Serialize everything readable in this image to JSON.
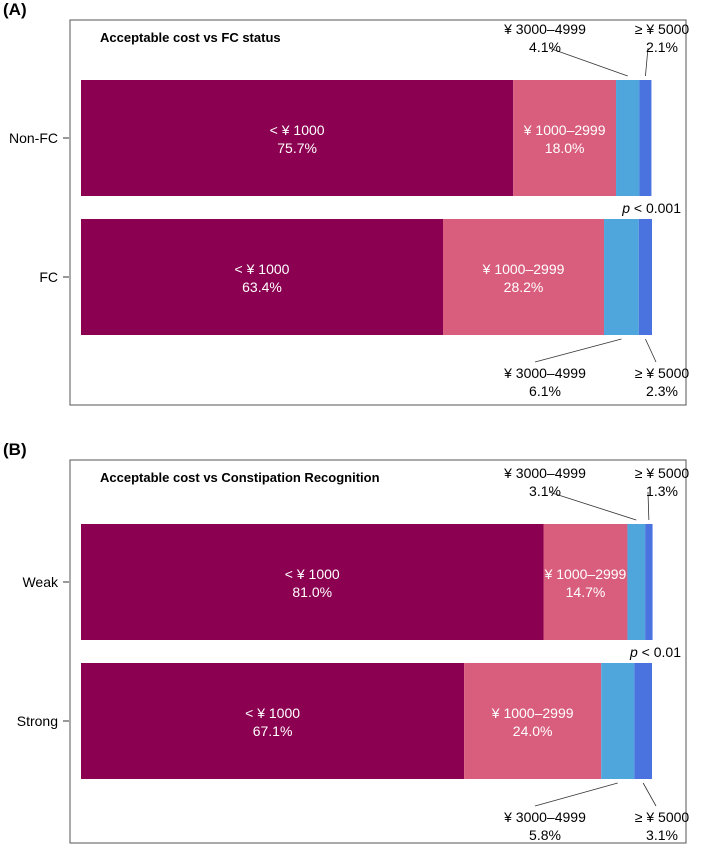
{
  "chart_data": [
    {
      "type": "bar",
      "orientation": "horizontal-stacked-100",
      "panel_label": "(A)",
      "title": "Acceptable cost vs FC status",
      "categories": [
        "Non-FC",
        "FC"
      ],
      "segments": [
        "< ¥ 1000",
        "¥ 1000–2999",
        "¥ 3000–4999",
        "≥ ¥ 5000"
      ],
      "series": [
        {
          "name": "< ¥ 1000",
          "values": [
            75.7,
            63.4
          ]
        },
        {
          "name": "¥ 1000–2999",
          "values": [
            18.0,
            28.2
          ]
        },
        {
          "name": "¥ 3000–4999",
          "values": [
            4.1,
            6.1
          ]
        },
        {
          "name": "≥ ¥ 5000",
          "values": [
            2.1,
            2.3
          ]
        }
      ],
      "p_value": {
        "prefix": "p",
        "text": " < 0.001"
      },
      "xlim": [
        0,
        100
      ]
    },
    {
      "type": "bar",
      "orientation": "horizontal-stacked-100",
      "panel_label": "(B)",
      "title": "Acceptable cost vs Constipation Recognition",
      "categories": [
        "Weak",
        "Strong"
      ],
      "segments": [
        "< ¥ 1000",
        "¥ 1000–2999",
        "¥ 3000–4999",
        "≥ ¥ 5000"
      ],
      "series": [
        {
          "name": "< ¥ 1000",
          "values": [
            81.0,
            67.1
          ]
        },
        {
          "name": "¥ 1000–2999",
          "values": [
            14.7,
            24.0
          ]
        },
        {
          "name": "¥ 3000–4999",
          "values": [
            3.1,
            5.8
          ]
        },
        {
          "name": "≥ ¥ 5000",
          "values": [
            1.3,
            3.1
          ]
        }
      ],
      "p_value": {
        "prefix": "p",
        "text": " < 0.01"
      },
      "xlim": [
        0,
        100
      ]
    }
  ],
  "colors": [
    "#8B0050",
    "#D95E7D",
    "#4FA6DC",
    "#4A73E0"
  ]
}
